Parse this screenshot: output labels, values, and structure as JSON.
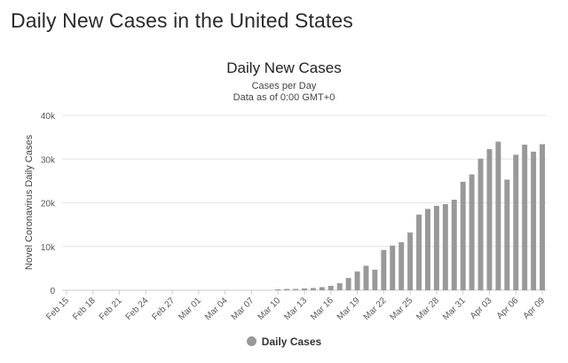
{
  "page": {
    "heading": "Daily New Cases in the United States"
  },
  "chart_data": {
    "type": "bar",
    "title": "Daily New Cases",
    "subtitle": [
      "Cases per Day",
      "Data as of 0:00 GMT+0"
    ],
    "ylabel": "Novel Coronavirus Daily Cases",
    "xlabel": "",
    "ylim": [
      0,
      40000
    ],
    "yticks": [
      0,
      10000,
      20000,
      30000,
      40000
    ],
    "ytick_labels": [
      "0",
      "10k",
      "20k",
      "30k",
      "40k"
    ],
    "grid": true,
    "legend_position": "bottom-center",
    "bar_color": "#999999",
    "categories": [
      "Feb 15",
      "Feb 16",
      "Feb 17",
      "Feb 18",
      "Feb 19",
      "Feb 20",
      "Feb 21",
      "Feb 22",
      "Feb 23",
      "Feb 24",
      "Feb 25",
      "Feb 26",
      "Feb 27",
      "Feb 28",
      "Feb 29",
      "Mar 01",
      "Mar 02",
      "Mar 03",
      "Mar 04",
      "Mar 05",
      "Mar 06",
      "Mar 07",
      "Mar 08",
      "Mar 09",
      "Mar 10",
      "Mar 11",
      "Mar 12",
      "Mar 13",
      "Mar 14",
      "Mar 15",
      "Mar 16",
      "Mar 17",
      "Mar 18",
      "Mar 19",
      "Mar 20",
      "Mar 21",
      "Mar 22",
      "Mar 23",
      "Mar 24",
      "Mar 25",
      "Mar 26",
      "Mar 27",
      "Mar 28",
      "Mar 29",
      "Mar 30",
      "Mar 31",
      "Apr 01",
      "Apr 02",
      "Apr 03",
      "Apr 04",
      "Apr 05",
      "Apr 06",
      "Apr 07",
      "Apr 08",
      "Apr 09"
    ],
    "x_tick_labels": [
      "Feb 15",
      "Feb 18",
      "Feb 21",
      "Feb 24",
      "Feb 27",
      "Mar 01",
      "Mar 04",
      "Mar 07",
      "Mar 10",
      "Mar 13",
      "Mar 16",
      "Mar 19",
      "Mar 22",
      "Mar 25",
      "Mar 28",
      "Mar 31",
      "Apr 03",
      "Apr 06",
      "Apr 09"
    ],
    "series": [
      {
        "name": "Daily Cases",
        "values": [
          0,
          0,
          0,
          0,
          0,
          0,
          0,
          0,
          0,
          0,
          0,
          0,
          0,
          0,
          0,
          0,
          0,
          0,
          0,
          0,
          0,
          0,
          0,
          0,
          200,
          300,
          300,
          400,
          500,
          700,
          1000,
          1600,
          2800,
          4300,
          5600,
          4700,
          9200,
          10200,
          11000,
          13200,
          17300,
          18600,
          19300,
          19700,
          20700,
          24800,
          26500,
          30100,
          32300,
          34000,
          25300,
          31000,
          33300,
          31700,
          33400
        ]
      }
    ]
  }
}
